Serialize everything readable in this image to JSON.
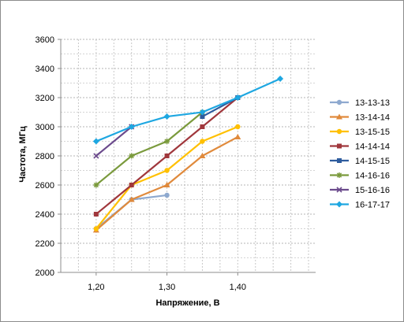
{
  "chart_data": {
    "type": "line",
    "title": "",
    "xlabel": "Напряжение, В",
    "ylabel": "Частота, МГц",
    "xlim": [
      1.15,
      1.51
    ],
    "ylim": [
      2000,
      3600
    ],
    "x_ticks": [
      1.2,
      1.3,
      1.4
    ],
    "x_tick_labels": [
      "1,20",
      "1,30",
      "1,40"
    ],
    "y_ticks": [
      2000,
      2200,
      2400,
      2600,
      2800,
      3000,
      3200,
      3400,
      3600
    ],
    "y_tick_labels": [
      "2000",
      "2200",
      "2400",
      "2600",
      "2800",
      "3000",
      "3200",
      "3400",
      "3600"
    ],
    "grid": "dashed",
    "legend_position": "right",
    "series": [
      {
        "name": "13-13-13",
        "color": "#8EA9CF",
        "marker": "circle",
        "x": [
          1.2,
          1.25,
          1.3
        ],
        "values": [
          2300,
          2500,
          2530
        ]
      },
      {
        "name": "13-14-14",
        "color": "#E08A3C",
        "marker": "triangle",
        "x": [
          1.2,
          1.25,
          1.3,
          1.35,
          1.4
        ],
        "values": [
          2290,
          2500,
          2600,
          2800,
          2930
        ]
      },
      {
        "name": "13-15-15",
        "color": "#FFC000",
        "marker": "circle",
        "x": [
          1.2,
          1.25,
          1.3,
          1.35,
          1.4
        ],
        "values": [
          2300,
          2600,
          2700,
          2900,
          3000
        ]
      },
      {
        "name": "14-14-14",
        "color": "#A0373C",
        "marker": "square",
        "x": [
          1.2,
          1.25,
          1.3,
          1.35,
          1.4
        ],
        "values": [
          2400,
          2600,
          2800,
          3000,
          3200
        ]
      },
      {
        "name": "14-15-15",
        "color": "#2E5C9E",
        "marker": "square",
        "x": [
          1.35,
          1.4
        ],
        "values": [
          3070,
          3200
        ]
      },
      {
        "name": "14-16-16",
        "color": "#7A9A3C",
        "marker": "star",
        "x": [
          1.2,
          1.25,
          1.3,
          1.35
        ],
        "values": [
          2600,
          2800,
          2900,
          3100
        ]
      },
      {
        "name": "15-16-16",
        "color": "#6B4A8C",
        "marker": "x",
        "x": [
          1.2,
          1.25
        ],
        "values": [
          2800,
          3000
        ]
      },
      {
        "name": "16-17-17",
        "color": "#1EA7E1",
        "marker": "diamond",
        "x": [
          1.2,
          1.25,
          1.3,
          1.35,
          1.4,
          1.46
        ],
        "values": [
          2900,
          3000,
          3070,
          3100,
          3200,
          3330
        ]
      }
    ]
  }
}
